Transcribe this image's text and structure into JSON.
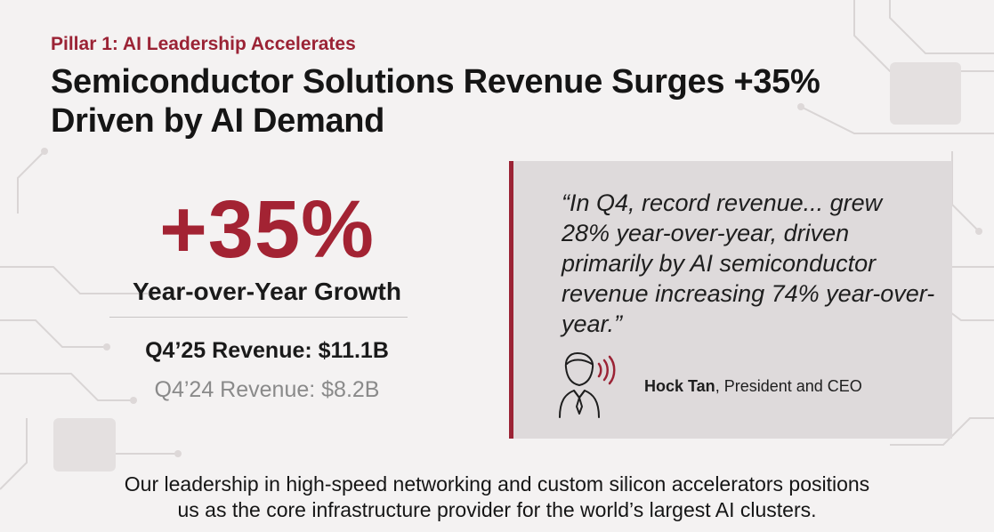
{
  "slide": {
    "eyebrow": "Pillar 1: AI Leadership Accelerates",
    "headline_line1": "Semiconductor Solutions Revenue Surges +35%",
    "headline_line2": "Driven by AI Demand"
  },
  "stat": {
    "value": "+35%",
    "label": "Year-over-Year Growth",
    "current_revenue": "Q4’25 Revenue: $11.1B",
    "prior_revenue": "Q4’24 Revenue: $8.2B"
  },
  "quote": {
    "text": "“In Q4, record revenue... grew 28% year-over-year, driven primarily by AI semiconductor revenue increasing 74% year-over-year.”",
    "speaker_name": "Hock Tan",
    "speaker_title": ", President and CEO",
    "icon": "speaking-person-icon"
  },
  "footer": {
    "text_line1": "Our leadership in high-speed networking and custom silicon accelerators positions",
    "text_line2": "us as the core infrastructure provider for the world’s largest AI clusters."
  },
  "colors": {
    "accent": "#9b2335",
    "stat": "#a32333",
    "card_bg": "#dedadb",
    "muted_text": "#8a8a8a"
  }
}
